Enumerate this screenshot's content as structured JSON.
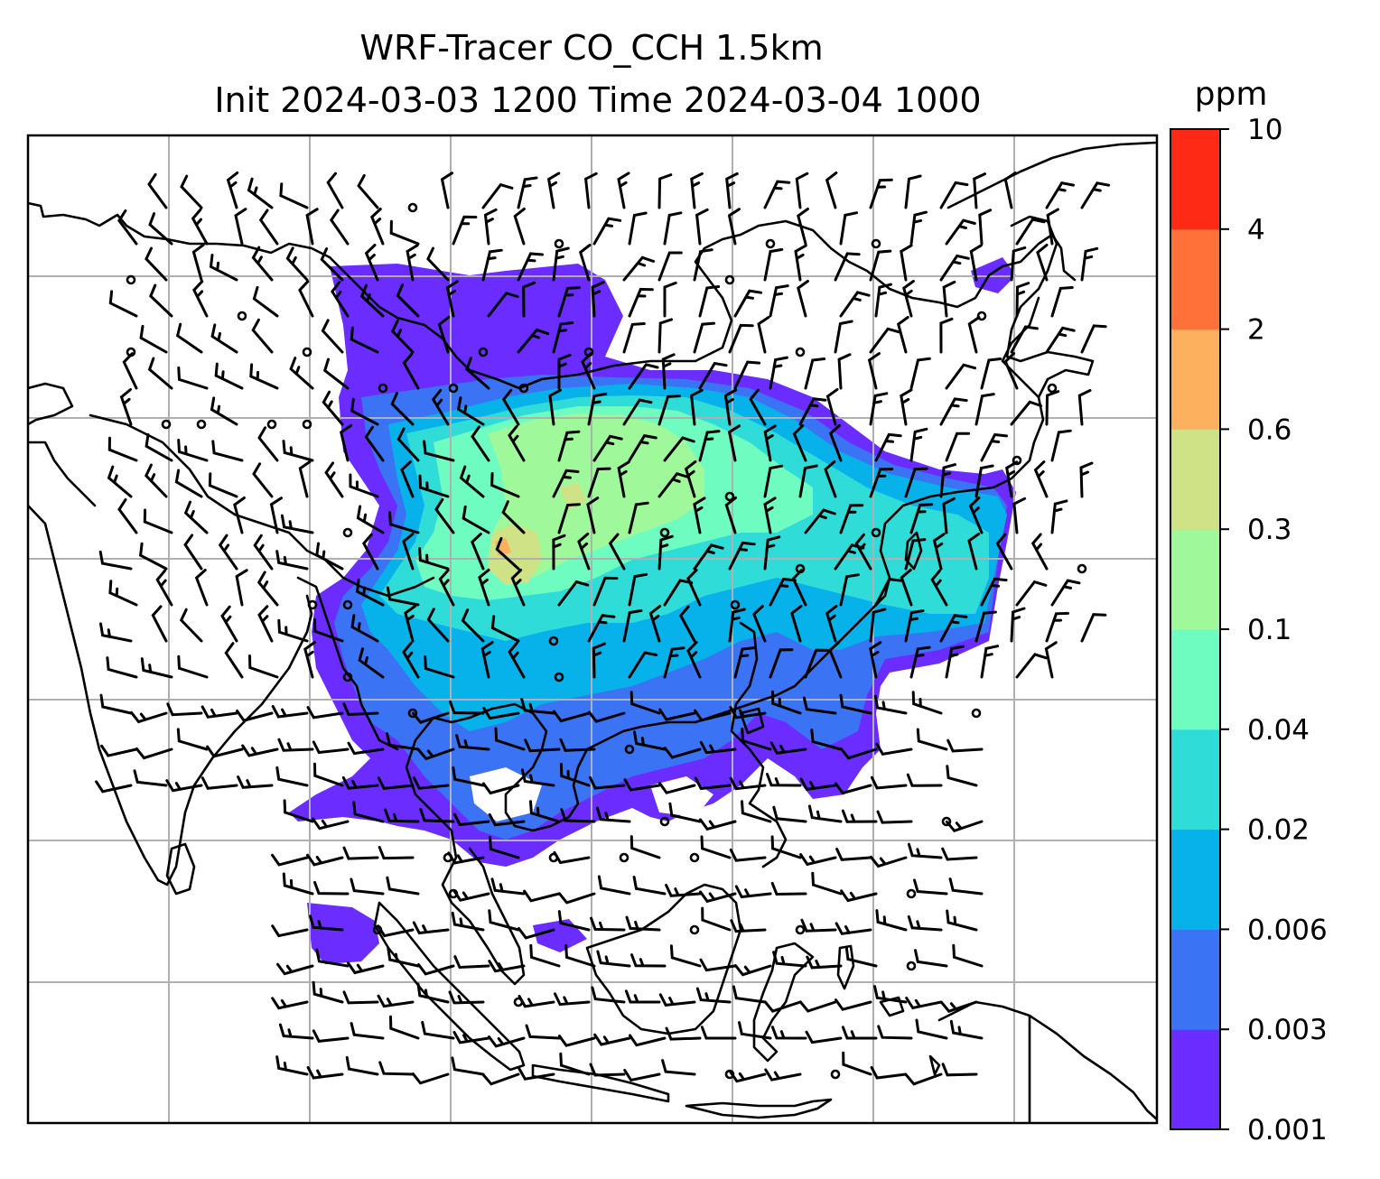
{
  "title": {
    "line1": "WRF-Tracer CO_CCH 1.5km",
    "line2": "Init 2024-03-03 1200 Time 2024-03-04 1000"
  },
  "colorbar": {
    "unit": "ppm",
    "ticks": [
      "0.001",
      "0.003",
      "0.006",
      "0.02",
      "0.04",
      "0.1",
      "0.3",
      "0.6",
      "2",
      "4",
      "10"
    ],
    "colors": [
      "#6a2cff",
      "#3a74f5",
      "#07b1ea",
      "#2fdcd8",
      "#6ffcc0",
      "#9ff89a",
      "#cfe285",
      "#fdb15e",
      "#ff7138",
      "#ff2a16"
    ]
  },
  "map": {
    "field": "CO_CCH tracer concentration",
    "overlay": "wind barbs",
    "gridlines": true
  }
}
